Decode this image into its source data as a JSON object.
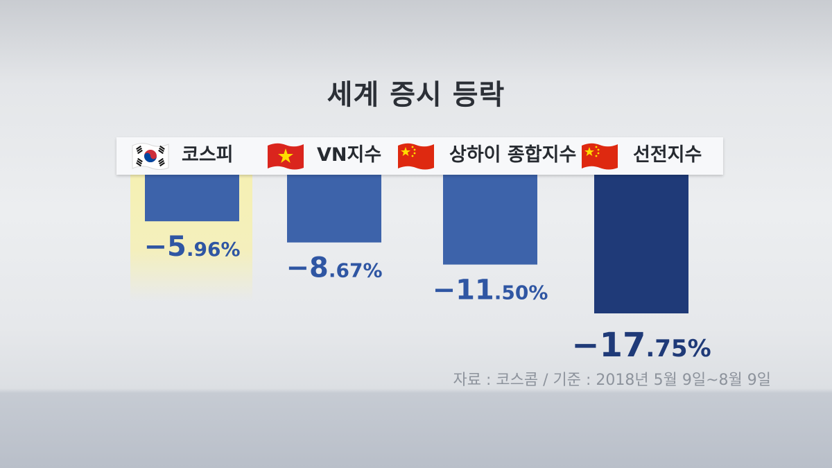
{
  "chart_data": {
    "type": "bar",
    "title": "세계 증시 등락",
    "categories": [
      "코스피",
      "VN지수",
      "상하이 종합지수",
      "선전지수"
    ],
    "values": [
      -5.96,
      -8.67,
      -11.5,
      -17.75
    ],
    "value_labels": [
      "−5.96%",
      "−8.67%",
      "−11.50%",
      "−17.75%"
    ],
    "flags": [
      "south-korea-flag",
      "vietnam-flag",
      "china-flag",
      "china-flag"
    ],
    "highlighted_category": "코스피",
    "ylim": [
      -17.75,
      0
    ],
    "grid": false,
    "colors": {
      "bar": "#3d63aa",
      "bar_emphasis": "#1f3a78",
      "highlight": "#f6f0b0",
      "label": "#2f56a3",
      "label_emphasis": "#1f3a78"
    }
  },
  "source_note": "자료 : 코스콤 / 기준 : 2018년 5월 9일~8월 9일"
}
